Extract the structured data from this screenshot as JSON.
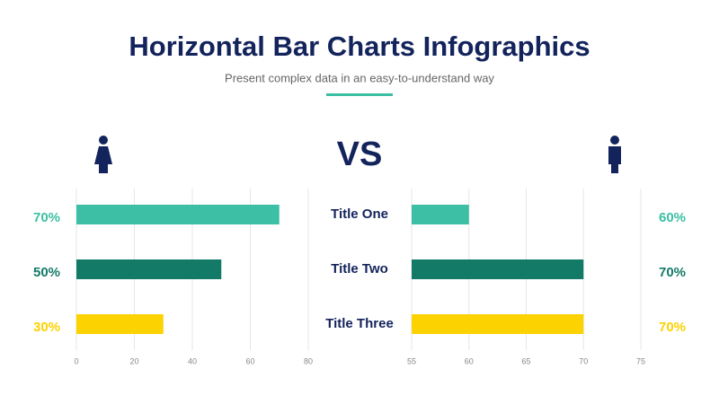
{
  "header": {
    "title": "Horizontal Bar Charts Infographics",
    "subtitle": "Present complex data in an easy-to-understand way",
    "vs": "VS"
  },
  "chart_data": [
    {
      "type": "hbar",
      "categories": [
        "Title One",
        "Title Two",
        "Title Three"
      ],
      "values": [
        70,
        50,
        30
      ],
      "value_labels": [
        "70%",
        "50%",
        "30%"
      ],
      "colors": [
        "#3cbfa4",
        "#147a68",
        "#fcd200"
      ],
      "xlim": [
        0,
        80
      ],
      "xticks": [
        0,
        20,
        40,
        60,
        80
      ],
      "grid": true
    },
    {
      "type": "hbar",
      "values": [
        60,
        70,
        70
      ],
      "value_labels": [
        "60%",
        "70%",
        "70%"
      ],
      "colors": [
        "#3cbfa4",
        "#147a68",
        "#fcd200"
      ],
      "xlim": [
        55,
        75
      ],
      "xticks": [
        55,
        60,
        65,
        70,
        75
      ],
      "grid": true
    }
  ]
}
